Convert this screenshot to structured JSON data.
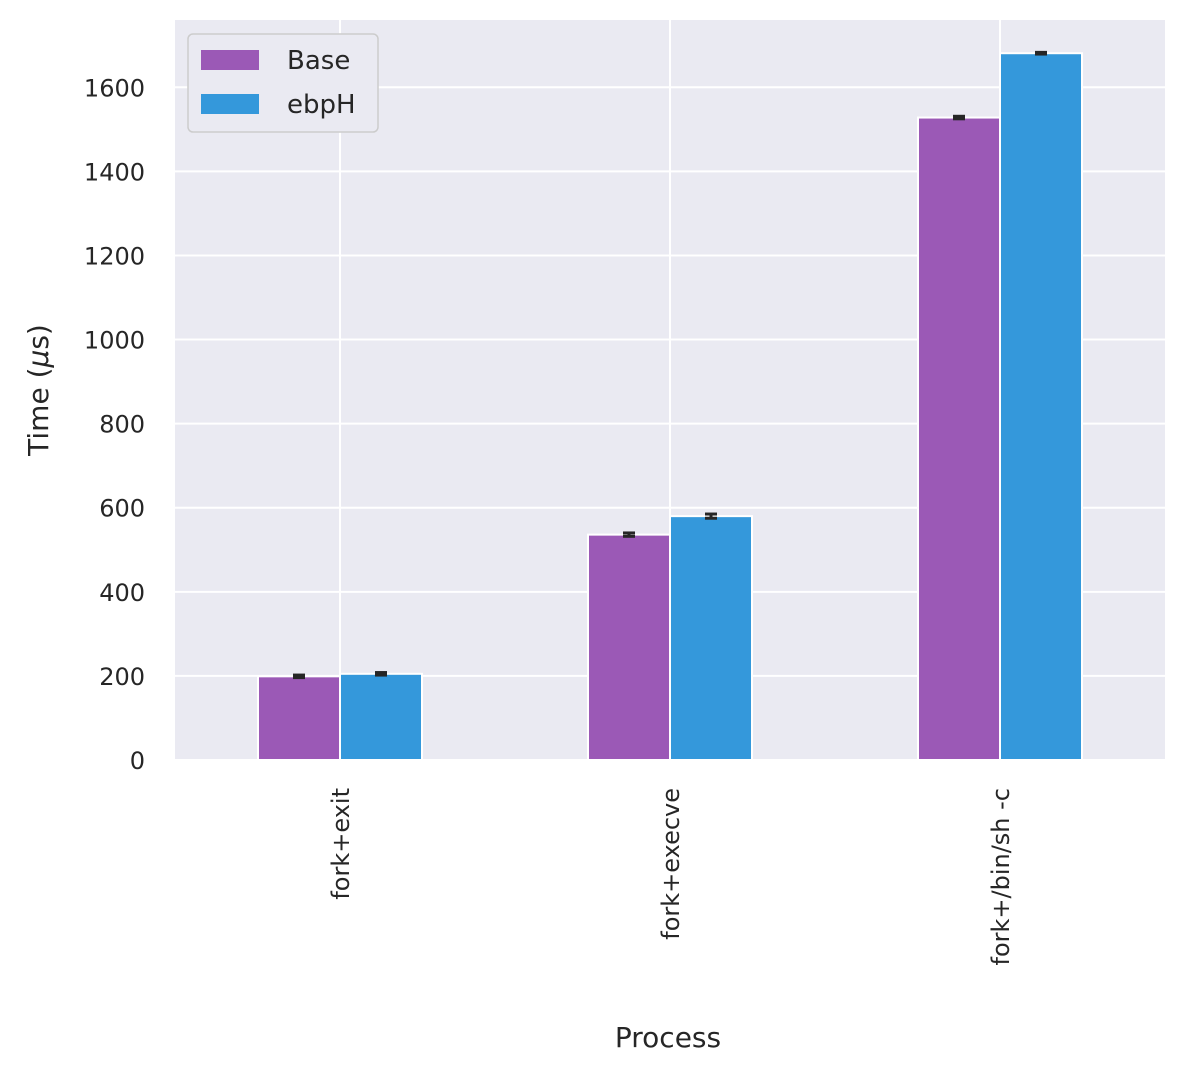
{
  "chart_data": {
    "type": "bar",
    "categories": [
      "fork+exit",
      "fork+execve",
      "fork+/bin/sh -c"
    ],
    "series": [
      {
        "name": "Base",
        "values": [
          199,
          536,
          1528
        ],
        "errors": [
          3,
          4,
          3
        ],
        "color": "#9b59b6"
      },
      {
        "name": "ebpH",
        "values": [
          205,
          580,
          1681
        ],
        "errors": [
          3,
          5,
          2
        ],
        "color": "#3498db"
      }
    ],
    "xlabel": "Process",
    "ylabel_prefix": "Time (",
    "ylabel_mu": "μ",
    "ylabel_suffix": "s)",
    "ylim": [
      0,
      1760
    ],
    "yticks": [
      0,
      200,
      400,
      600,
      800,
      1000,
      1200,
      1400,
      1600
    ],
    "grid": true,
    "legend_position": "top-left",
    "background_color": "#eaeaf2",
    "grid_color": "#ffffff",
    "error_color": "#262626"
  }
}
